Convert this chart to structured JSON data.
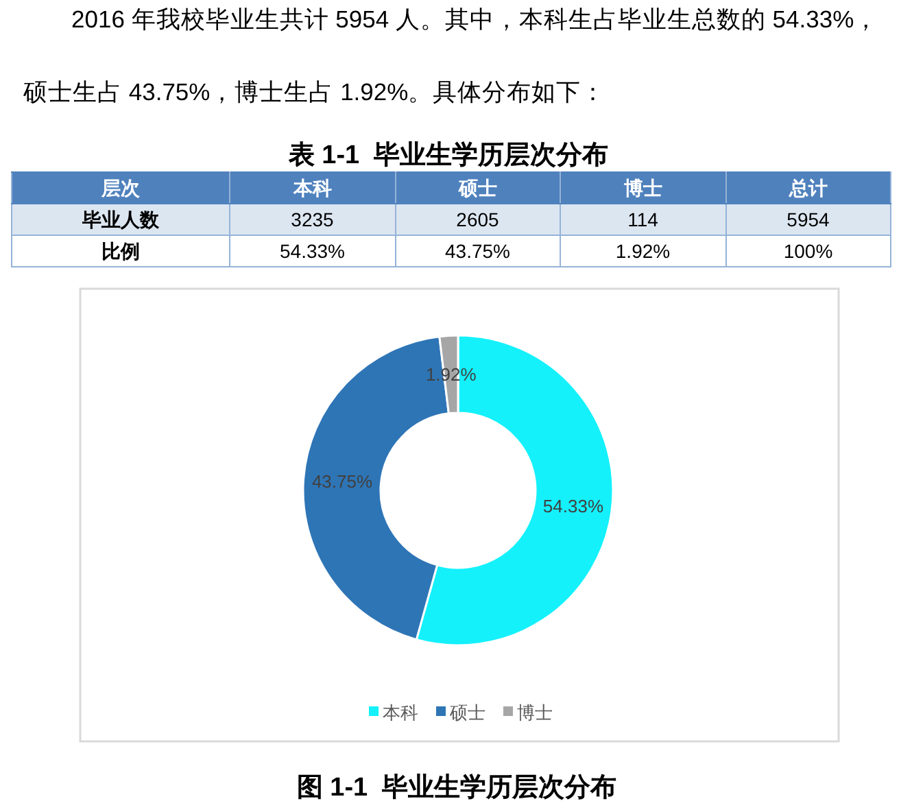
{
  "chart_data": {
    "type": "donut",
    "title": "图 1-1  毕业生学历层次分布",
    "categories": [
      "本科",
      "硕士",
      "博士"
    ],
    "values": [
      54.33,
      43.75,
      1.92
    ],
    "colors": [
      "#14f1fb",
      "#2e75b6",
      "#a6a6a6"
    ],
    "value_labels": [
      "54.33%",
      "43.75%",
      "1.92%"
    ],
    "legend": "bottom",
    "annotations": [
      "2016 年我校毕业生共计 5954 人。其中，本科生占毕业生总数的 54.33%，硕士生占 43.75%，博士生占 1.92%。具体分布如下：",
      "表 1-1  毕业生学历层次分布",
      "层次",
      "本科",
      "硕士",
      "博士",
      "总计",
      "毕业人数",
      "3235",
      "2605",
      "114",
      "5954",
      "比例",
      "54.33%",
      "43.75%",
      "1.92%",
      "100%"
    ]
  }
}
